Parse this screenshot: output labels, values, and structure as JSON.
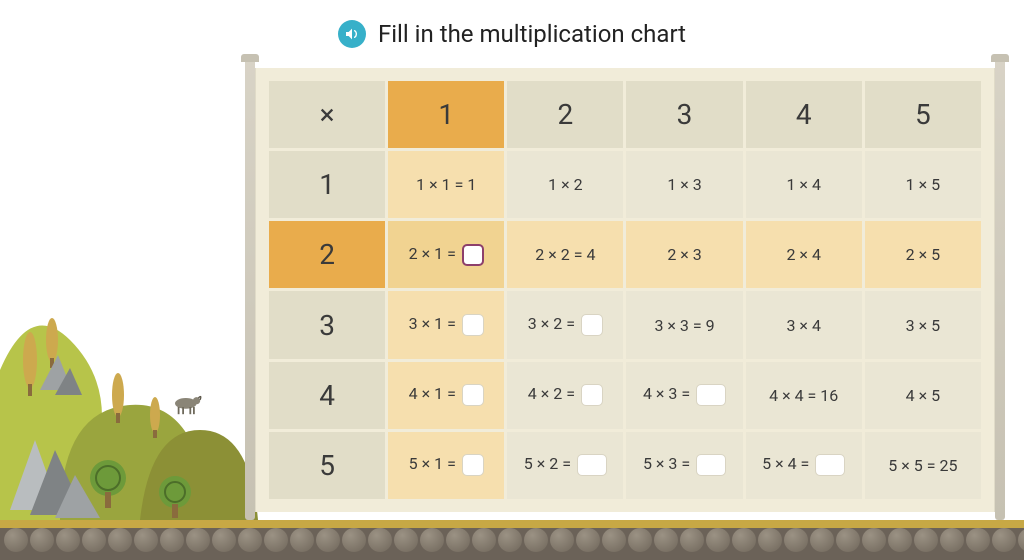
{
  "title": "Fill in the multiplication chart",
  "audio_icon": "speaker-icon",
  "colors": {
    "audio_button": "#37b0c9",
    "board_bg": "#f1ecd9",
    "cell_default": "#eae6d4",
    "cell_header": "#e1ddc8",
    "highlight_strong": "#e9ac4c",
    "highlight_mid": "#f1d391",
    "highlight_tint": "#f6dfae",
    "input_border_active": "#8d3f6b",
    "ground": "#6b6258",
    "ground_top": "#c7a845",
    "hill_green": "#b7c44a",
    "hill_dark": "#8c9036",
    "rock_light": "#b9bdbf",
    "rock_dark": "#7f8385",
    "tree_green": "#6d9a3a",
    "tree_dark": "#4c6e29",
    "trunk": "#8a6b3d"
  },
  "chart": {
    "corner": "×",
    "col_headers": [
      "1",
      "2",
      "3",
      "4",
      "5"
    ],
    "row_headers": [
      "1",
      "2",
      "3",
      "4",
      "5"
    ],
    "highlight": {
      "row_index": 1,
      "col_index": 0
    },
    "cells": [
      [
        {
          "text": "1 × 1 = 1",
          "tint": true
        },
        {
          "text": "1 × 2"
        },
        {
          "text": "1 × 3"
        },
        {
          "text": "1 × 4"
        },
        {
          "text": "1 × 5"
        }
      ],
      [
        {
          "text": "2 × 1 = ",
          "input": true,
          "active": true,
          "tint": true,
          "mid": true
        },
        {
          "text": "2 × 2 = 4",
          "tint": true
        },
        {
          "text": "2 × 3",
          "tint": true
        },
        {
          "text": "2 × 4",
          "tint": true
        },
        {
          "text": "2 × 5",
          "tint": true
        }
      ],
      [
        {
          "text": "3 × 1 = ",
          "input": true,
          "tint": true
        },
        {
          "text": "3 × 2 = ",
          "input": true
        },
        {
          "text": "3 × 3 = 9"
        },
        {
          "text": "3 × 4"
        },
        {
          "text": "3 × 5"
        }
      ],
      [
        {
          "text": "4 × 1 = ",
          "input": true,
          "tint": true
        },
        {
          "text": "4 × 2 = ",
          "input": true
        },
        {
          "text": "4 × 3 = ",
          "input": true,
          "wide": true
        },
        {
          "text": "4 × 4 = 16"
        },
        {
          "text": "4 × 5"
        }
      ],
      [
        {
          "text": "5 × 1 = ",
          "input": true,
          "tint": true
        },
        {
          "text": "5 × 2 = ",
          "input": true,
          "wide": true
        },
        {
          "text": "5 × 3 = ",
          "input": true,
          "wide": true
        },
        {
          "text": "5 × 4 = ",
          "input": true,
          "wide": true
        },
        {
          "text": "5 × 5 = 25"
        }
      ]
    ]
  },
  "pebble_count": 42
}
